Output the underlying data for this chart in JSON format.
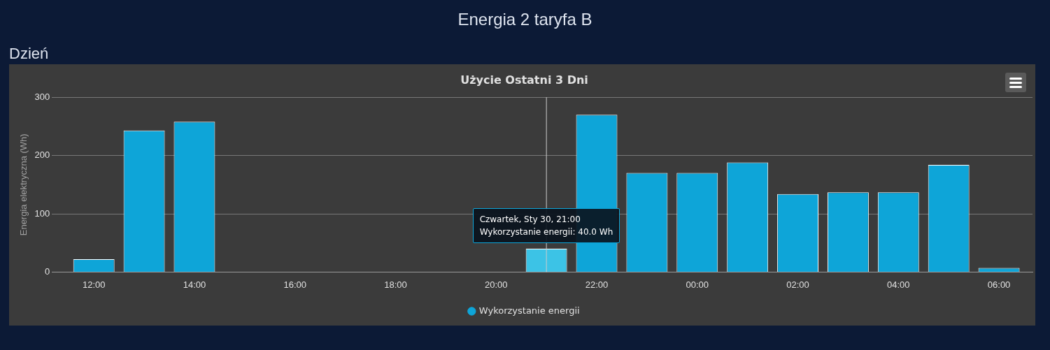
{
  "chart_data": {
    "type": "bar",
    "title": "Użycie Ostatni 3 Dni",
    "ylabel": "Energia elektryczna (Wh)",
    "x": [
      "--01-30T12:00",
      "--01-30T13:00",
      "--01-30T14:00",
      "--01-30T15:00",
      "--01-30T16:00",
      "--01-30T17:00",
      "--01-30T18:00",
      "--01-30T19:00",
      "--01-30T20:00",
      "--01-30T21:00",
      "--01-30T22:00",
      "--01-30T23:00",
      "--01-31T00:00",
      "--01-31T01:00",
      "--01-31T02:00",
      "--01-31T03:00",
      "--01-31T04:00",
      "--01-31T05:00",
      "--01-31T06:00"
    ],
    "series": [
      {
        "name": "Wykorzystanie energii",
        "color": "#0ea5d8",
        "colors": [
          "#0ea5d8",
          "#0ea5d8",
          "#0ea5d8",
          "#0ea5d8",
          "#0ea5d8",
          "#0ea5d8",
          "#0ea5d8",
          "#0ea5d8",
          "#0ea5d8",
          "#3cc3e6",
          "#0ea5d8",
          "#0ea5d8",
          "#0ea5d8",
          "#0ea5d8",
          "#0ea5d8",
          "#0ea5d8",
          "#0ea5d8",
          "#0ea5d8",
          "#0ea5d8"
        ],
        "values": [
          22,
          243,
          258,
          null,
          null,
          null,
          null,
          null,
          null,
          40,
          270,
          170,
          170,
          188,
          134,
          137,
          137,
          184,
          7
        ]
      }
    ],
    "xlim": [
      "--01-30T11:10",
      "--01-31T06:40"
    ],
    "xticks": [
      {
        "value": "--01-30T12:00",
        "label": "12:00"
      },
      {
        "value": "--01-30T14:00",
        "label": "14:00"
      },
      {
        "value": "--01-30T16:00",
        "label": "16:00"
      },
      {
        "value": "--01-30T18:00",
        "label": "18:00"
      },
      {
        "value": "--01-30T20:00",
        "label": "20:00"
      },
      {
        "value": "--01-30T22:00",
        "label": "22:00"
      },
      {
        "value": "--01-31T00:00",
        "label": "00:00"
      },
      {
        "value": "--01-31T02:00",
        "label": "02:00"
      },
      {
        "value": "--01-31T04:00",
        "label": "04:00"
      },
      {
        "value": "--01-31T06:00",
        "label": "06:00"
      }
    ],
    "ylim": [
      0,
      300
    ],
    "yticks": [
      0,
      100,
      200,
      300
    ],
    "grid": "y",
    "legend": "bottom",
    "ref_lines": [
      {
        "axis": "x",
        "value": "--01-30T21:00",
        "color": "#cccccc"
      }
    ],
    "annotations": [
      "Energia 2 taryfa B",
      "Dzień",
      {
        "text": "Czwartek, Sty 30, 21:00\nWykorzystanie energii: 40.0 Wh",
        "x": "--01-30T21:00",
        "y": 40
      }
    ]
  }
}
